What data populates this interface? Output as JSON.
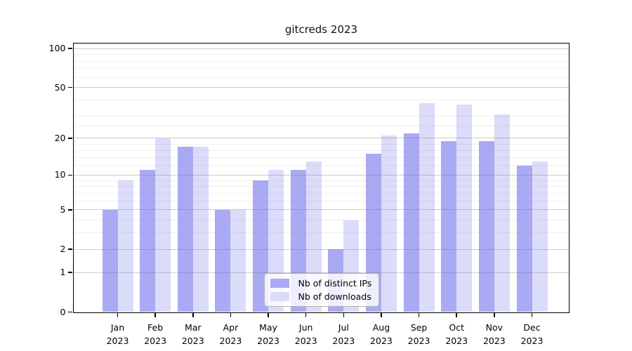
{
  "title": "gitcreds 2023",
  "chart_data": {
    "type": "bar",
    "title": "gitcreds 2023",
    "categories": [
      "Jan 2023",
      "Feb 2023",
      "Mar 2023",
      "Apr 2023",
      "May 2023",
      "Jun 2023",
      "Jul 2023",
      "Aug 2023",
      "Sep 2023",
      "Oct 2023",
      "Nov 2023",
      "Dec 2023"
    ],
    "category_month_labels": [
      "Jan",
      "Feb",
      "Mar",
      "Apr",
      "May",
      "Jun",
      "Jul",
      "Aug",
      "Sep",
      "Oct",
      "Nov",
      "Dec"
    ],
    "category_year_label": "2023",
    "series": [
      {
        "name": "Nb of distinct IPs",
        "color": "#a9a9f4",
        "values": [
          5,
          11,
          17,
          5,
          9,
          11,
          2,
          15,
          22,
          19,
          19,
          12
        ]
      },
      {
        "name": "Nb of downloads",
        "color": "#dbdbfa",
        "values": [
          9,
          20,
          17,
          5,
          11,
          13,
          4,
          21,
          38,
          37,
          31,
          13
        ]
      }
    ],
    "xlabel": "",
    "ylabel": "",
    "yscale": "log1p",
    "ylim": [
      0,
      110
    ],
    "y_major_ticks": [
      0,
      1,
      2,
      5,
      10,
      20,
      50,
      100
    ],
    "y_minor_gridlines": [
      3,
      4,
      6,
      7,
      8,
      9,
      12,
      14,
      16,
      18,
      25,
      30,
      40,
      60,
      70,
      80,
      90
    ],
    "grid": "horizontal, drawn over bars",
    "legend_position": "bottom-center-inside"
  },
  "colors": {
    "bar_distinct_ips": "#a9a9f4",
    "bar_downloads": "#dbdbfa",
    "axis": "#000000",
    "major_grid": "#c8c8c8",
    "minor_grid": "#ececec",
    "legend_border": "#b3b3b3"
  }
}
